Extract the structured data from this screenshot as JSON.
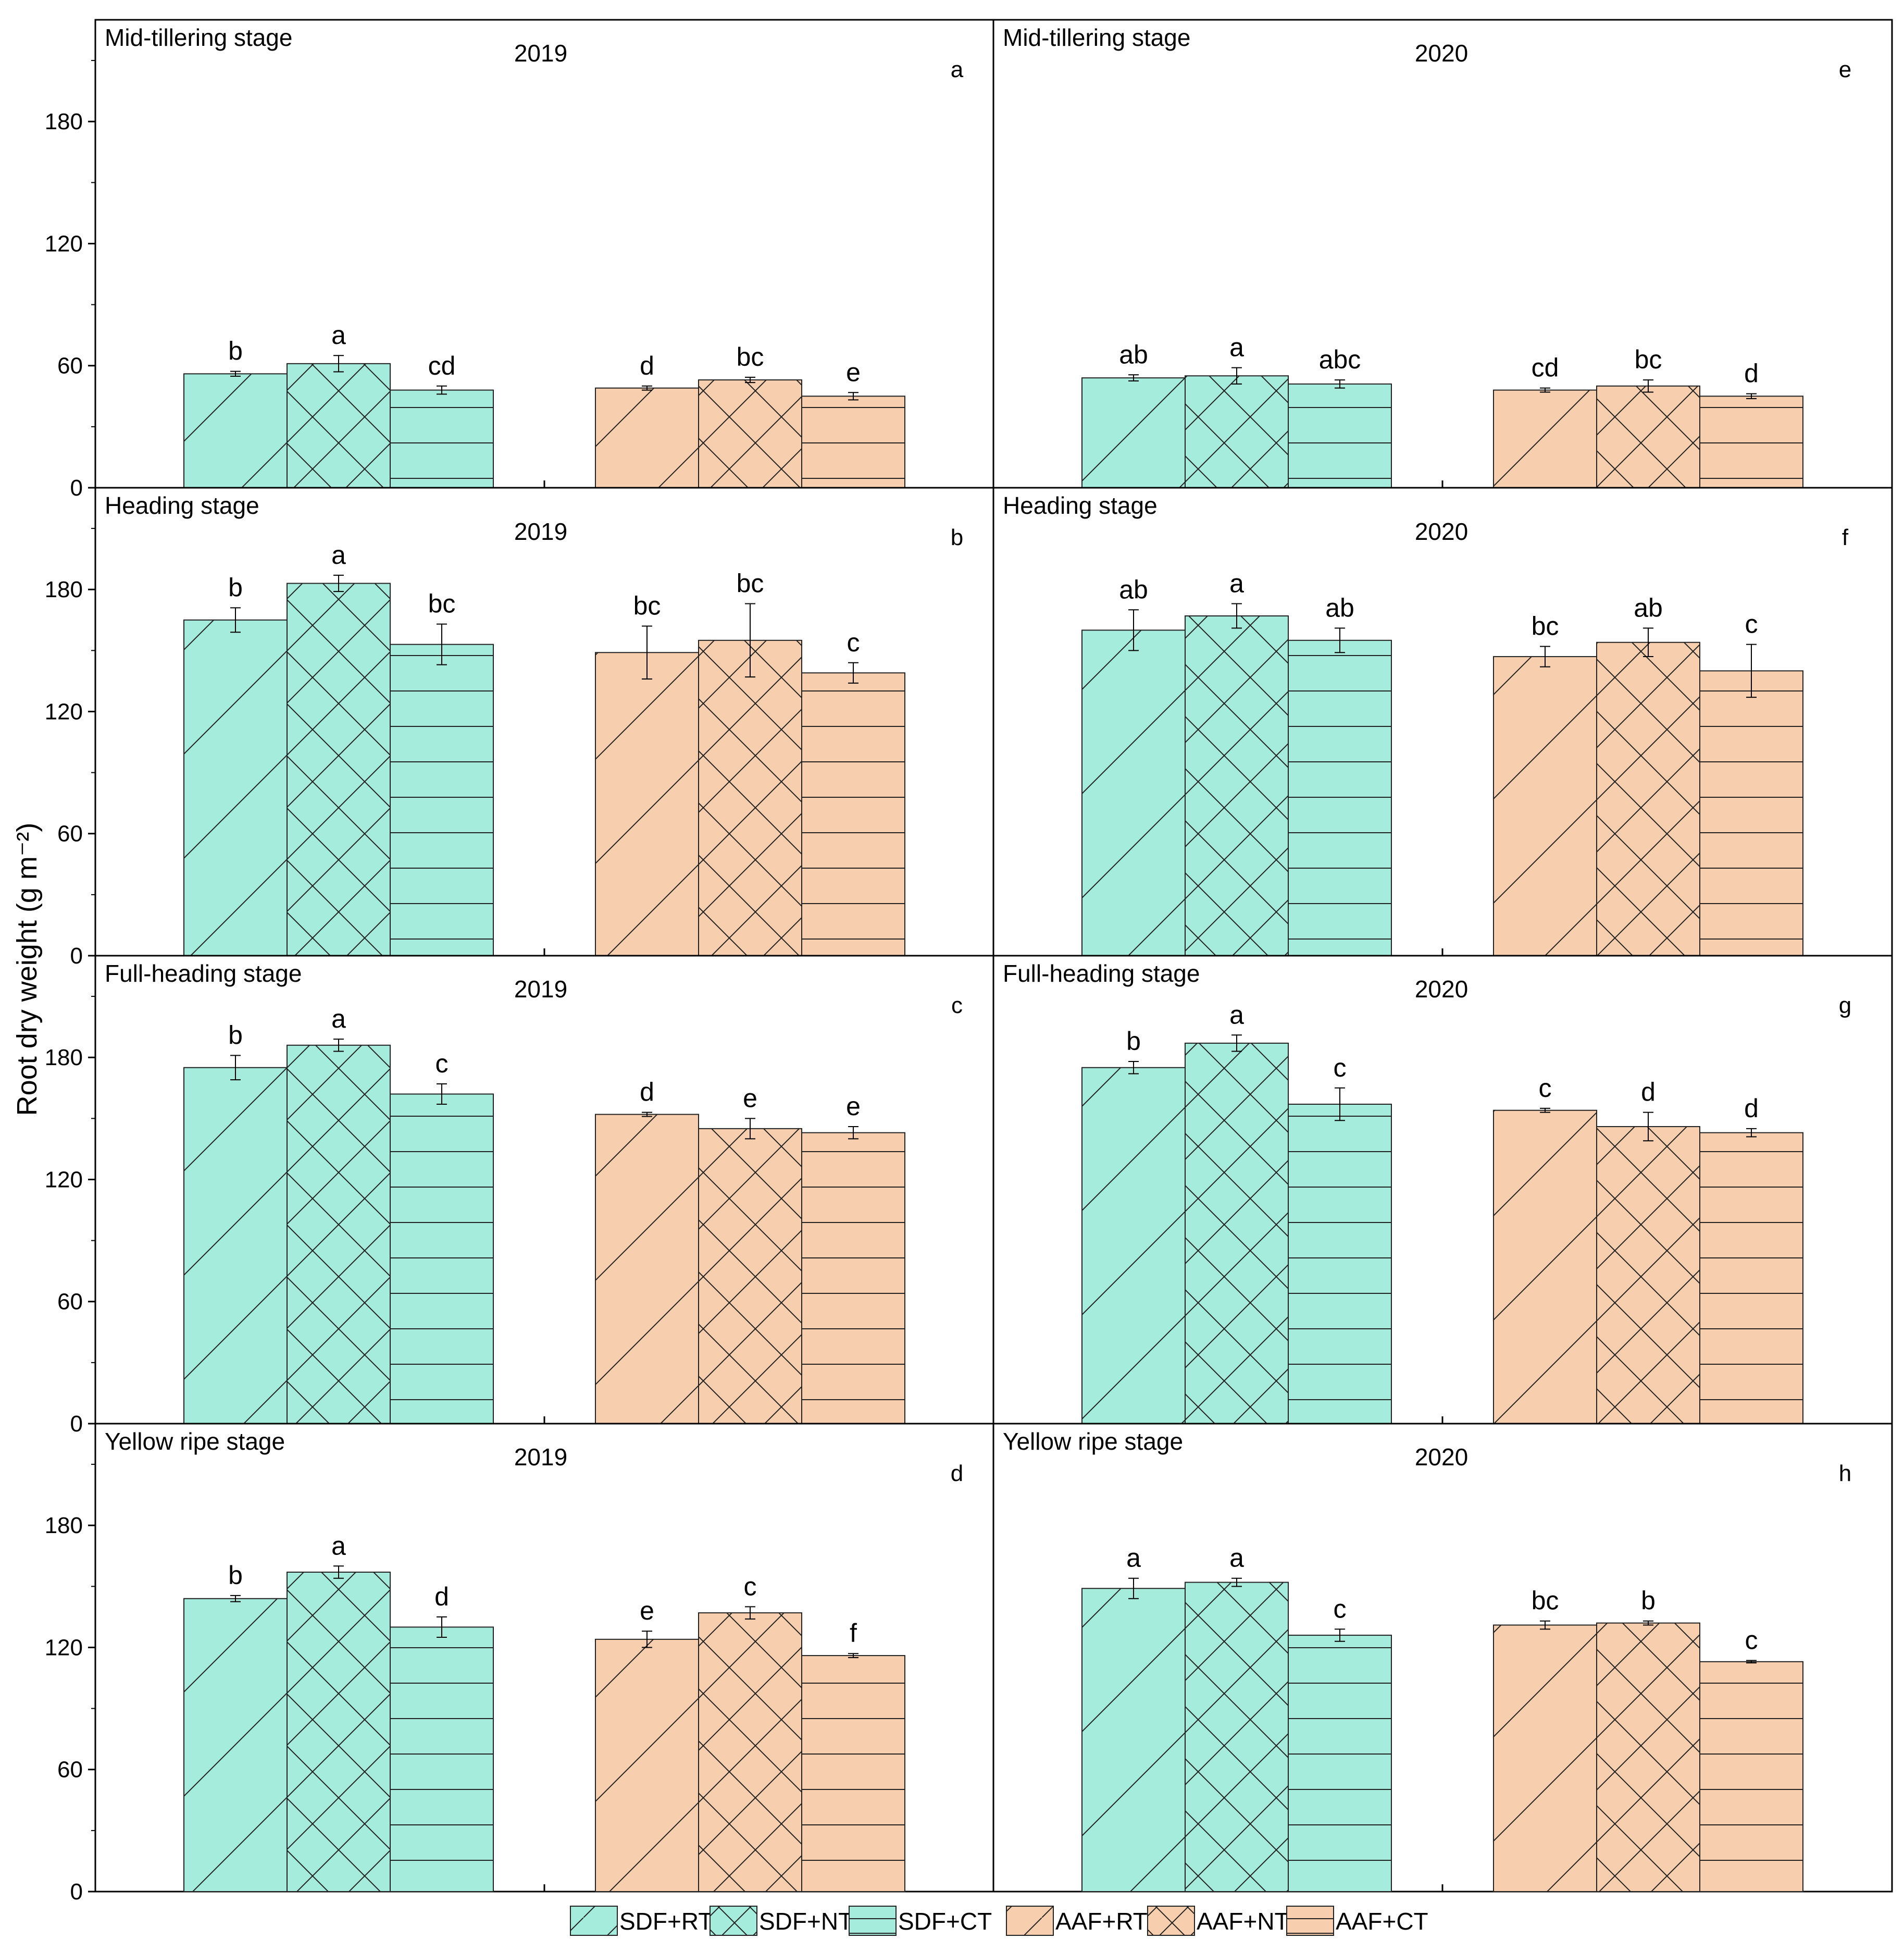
{
  "chart_data": {
    "type": "bar",
    "y_axis_title": "Root dry weight (g m⁻²)",
    "ylim": [
      0,
      230
    ],
    "yticks": [
      0,
      60,
      120,
      180
    ],
    "treatments": [
      {
        "name": "SDF+RT",
        "color": "#a6ecdc",
        "pattern": "diagonal"
      },
      {
        "name": "SDF+NT",
        "color": "#a6ecdc",
        "pattern": "crosshatch"
      },
      {
        "name": "SDF+CT",
        "color": "#a6ecdc",
        "pattern": "horizontal"
      },
      {
        "name": "AAF+RT",
        "color": "#f8cfae",
        "pattern": "diagonal"
      },
      {
        "name": "AAF+NT",
        "color": "#f8cfae",
        "pattern": "crosshatch"
      },
      {
        "name": "AAF+CT",
        "color": "#f8cfae",
        "pattern": "horizontal"
      }
    ],
    "panels": [
      {
        "id": "a",
        "stage": "Mid-tillering stage",
        "year": "2019",
        "values": [
          56,
          61,
          48,
          49,
          53,
          45
        ],
        "errors": [
          1.2,
          4,
          2,
          1,
          1.3,
          1.8
        ],
        "sig": [
          "b",
          "a",
          "cd",
          "d",
          "bc",
          "e"
        ]
      },
      {
        "id": "e",
        "stage": "Mid-tillering stage",
        "year": "2020",
        "values": [
          54,
          55,
          51,
          48,
          50,
          45
        ],
        "errors": [
          1.5,
          4,
          2,
          1,
          3,
          1.2
        ],
        "sig": [
          "ab",
          "a",
          "abc",
          "cd",
          "bc",
          "d"
        ]
      },
      {
        "id": "b",
        "stage": "Heading stage",
        "year": "2019",
        "values": [
          165,
          183,
          153,
          149,
          155,
          139
        ],
        "errors": [
          6,
          4,
          10,
          13,
          18,
          5
        ],
        "sig": [
          "b",
          "a",
          "bc",
          "bc",
          "bc",
          "c"
        ]
      },
      {
        "id": "f",
        "stage": "Heading stage",
        "year": "2020",
        "values": [
          160,
          167,
          155,
          147,
          154,
          140
        ],
        "errors": [
          10,
          6,
          6,
          5,
          7,
          13
        ],
        "sig": [
          "ab",
          "a",
          "ab",
          "bc",
          "ab",
          "c"
        ]
      },
      {
        "id": "c",
        "stage": "Full-heading stage",
        "year": "2019",
        "values": [
          175,
          186,
          162,
          152,
          145,
          143
        ],
        "errors": [
          6,
          3,
          5,
          1,
          5,
          3
        ],
        "sig": [
          "b",
          "a",
          "c",
          "d",
          "e",
          "e"
        ]
      },
      {
        "id": "g",
        "stage": "Full-heading stage",
        "year": "2020",
        "values": [
          175,
          187,
          157,
          154,
          146,
          143
        ],
        "errors": [
          3,
          4,
          8,
          1,
          7,
          2
        ],
        "sig": [
          "b",
          "a",
          "c",
          "c",
          "d",
          "d"
        ]
      },
      {
        "id": "d",
        "stage": "Yellow ripe stage",
        "year": "2019",
        "values": [
          144,
          157,
          130,
          124,
          137,
          116
        ],
        "errors": [
          1.5,
          3,
          5,
          4,
          3,
          1
        ],
        "sig": [
          "b",
          "a",
          "d",
          "e",
          "c",
          "f"
        ]
      },
      {
        "id": "h",
        "stage": "Yellow ripe stage",
        "year": "2020",
        "values": [
          149,
          152,
          126,
          131,
          132,
          113
        ],
        "errors": [
          5,
          2,
          3,
          2,
          1,
          0.6
        ],
        "sig": [
          "a",
          "a",
          "c",
          "bc",
          "b",
          "c"
        ]
      }
    ]
  }
}
